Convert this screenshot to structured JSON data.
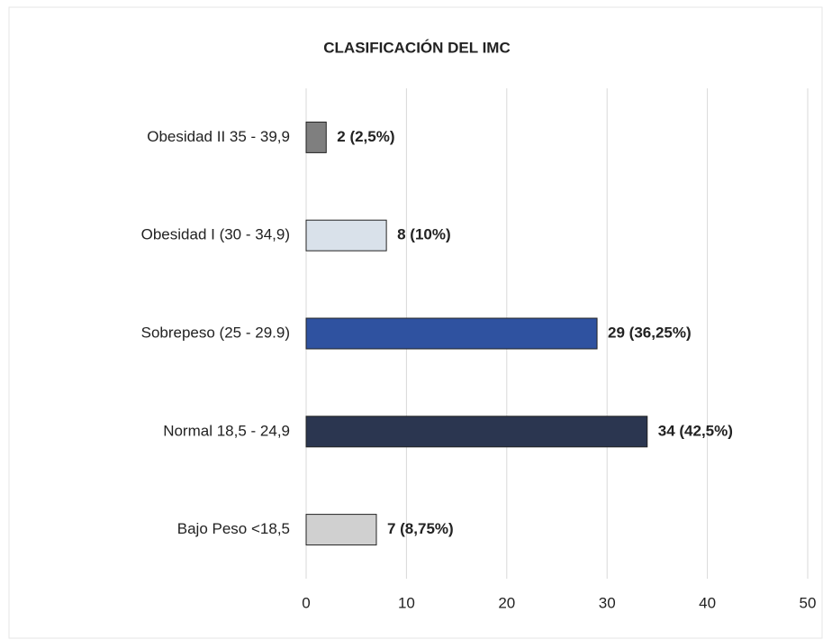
{
  "chart_data": {
    "type": "barh",
    "title": "CLASIFICACIÓN DEL IMC",
    "categories": [
      "Obesidad II 35 - 39,9",
      "Obesidad I (30 - 34,9)",
      "Sobrepeso (25 - 29.9)",
      "Normal 18,5 - 24,9",
      "Bajo Peso <18,5"
    ],
    "values": [
      2,
      8,
      29,
      34,
      7
    ],
    "value_labels": [
      "2 (2,5%)",
      "8 (10%)",
      "29 (36,25%)",
      "34 (42,5%)",
      "7 (8,75%)"
    ],
    "colors": [
      "#7f7f7f",
      "#d9e1ea",
      "#2f52a0",
      "#2b3650",
      "#d0d0d0"
    ],
    "xlim": [
      0,
      50
    ],
    "xticks": [
      0,
      10,
      20,
      30,
      40,
      50
    ],
    "grid": true
  }
}
